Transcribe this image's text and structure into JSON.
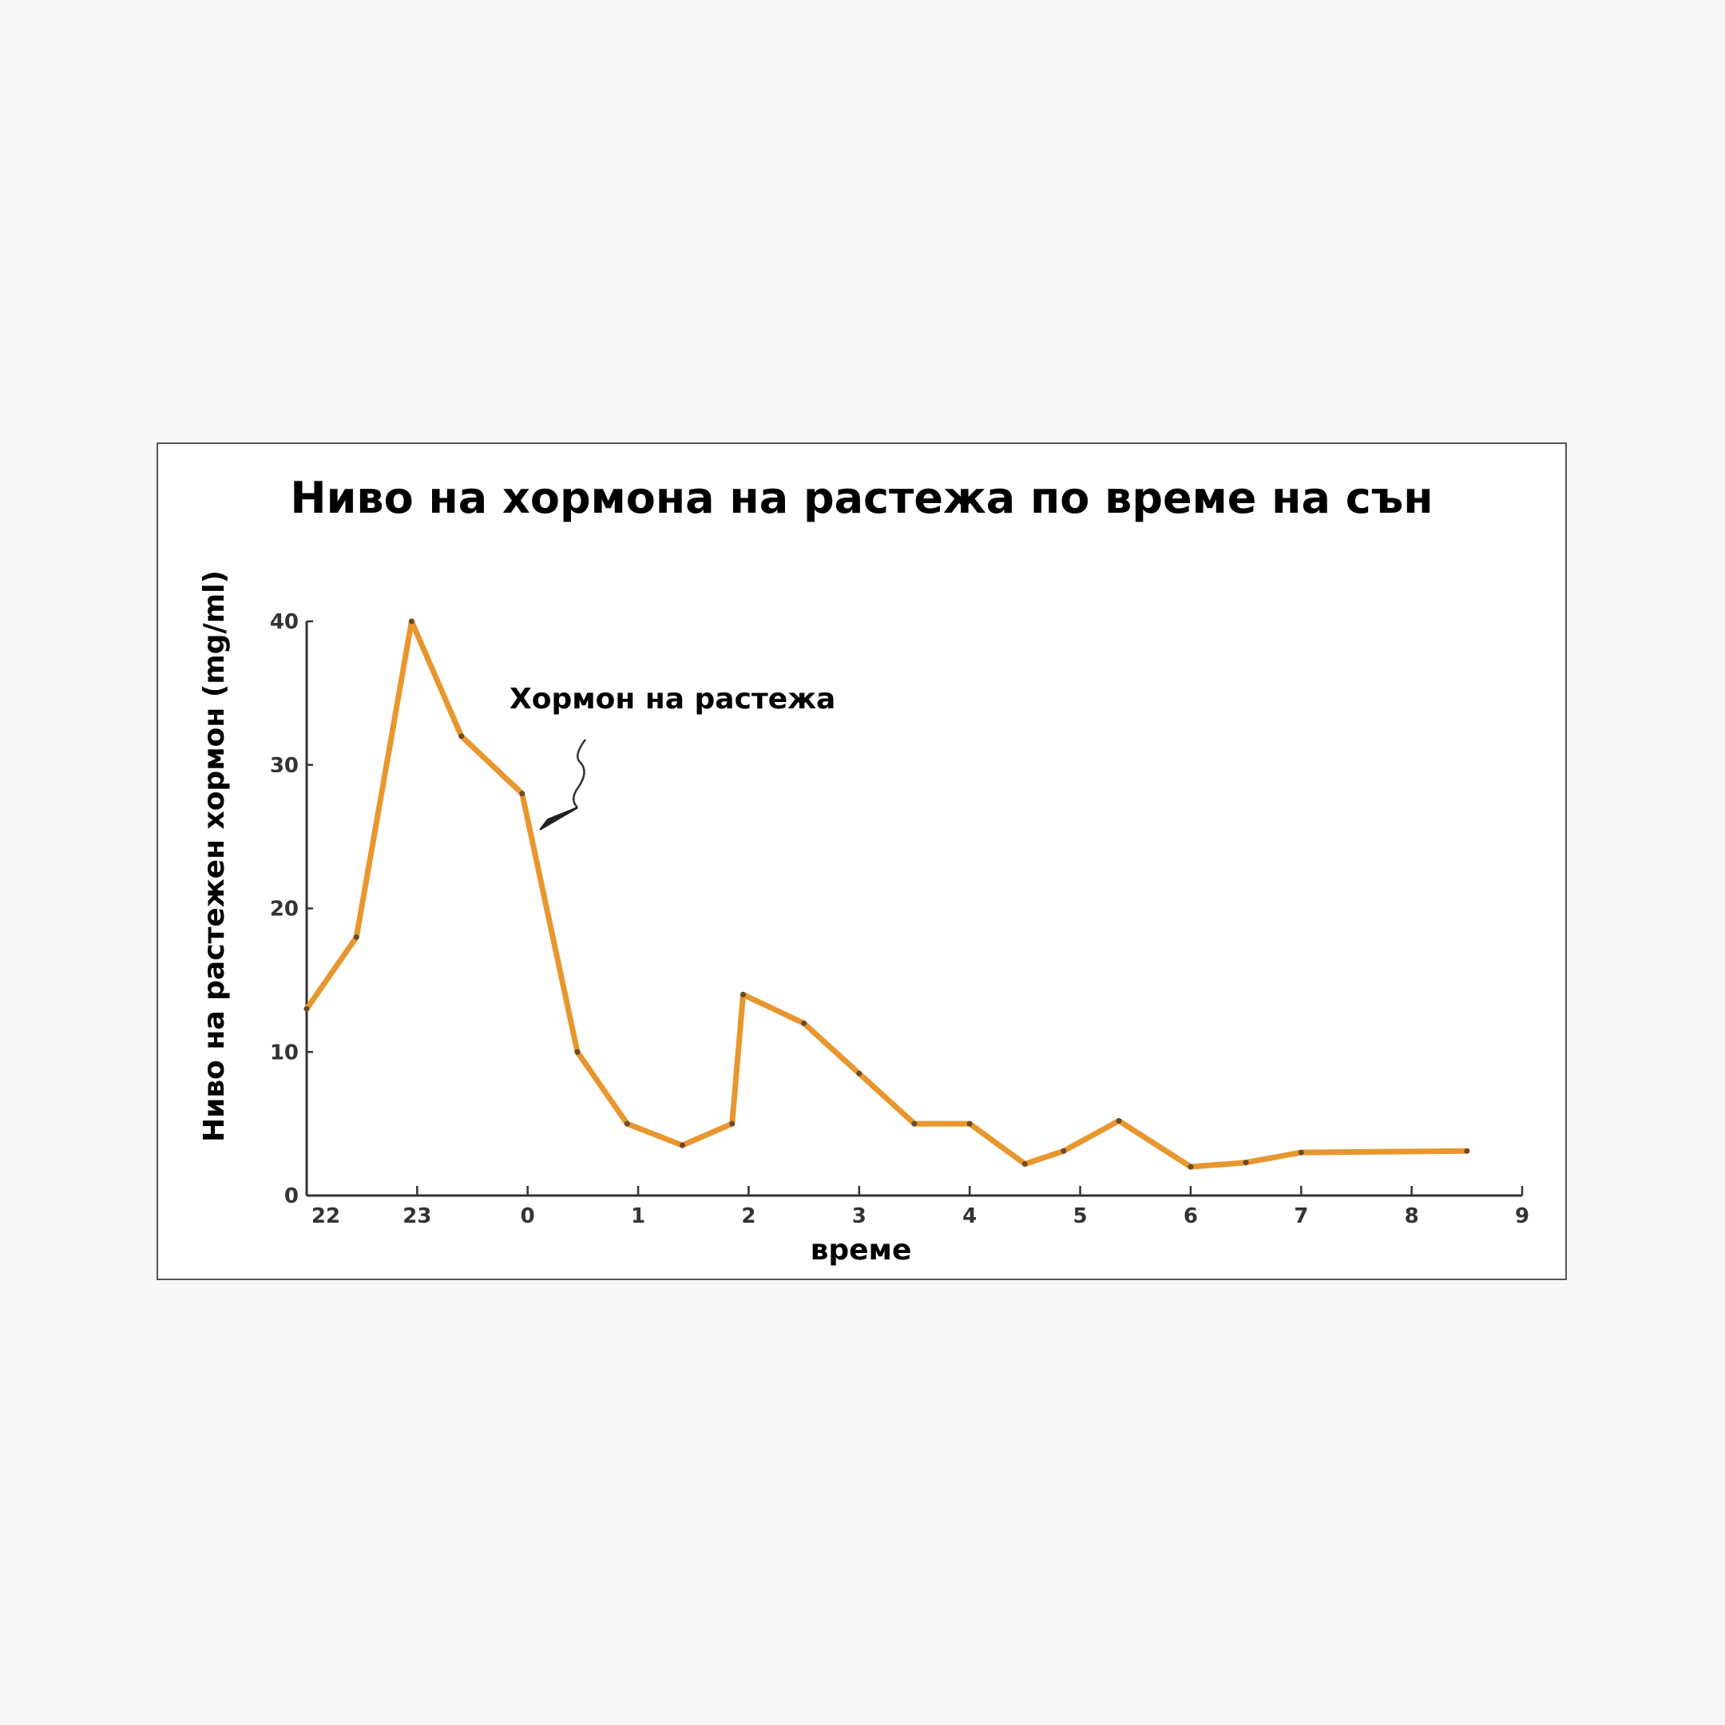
{
  "chart_data": {
    "type": "line",
    "title": "Ниво на хормона на растежа по време на сън",
    "xlabel": "време",
    "ylabel": "Ниво на растежен хормон (mg/ml)",
    "annotation": "Хормон на растежа",
    "x_tick_labels": [
      "22",
      "23",
      "0",
      "1",
      "2",
      "3",
      "4",
      "5",
      "6",
      "7",
      "8",
      "9"
    ],
    "y_ticks": [
      0,
      10,
      20,
      30,
      40
    ],
    "ylim": [
      0,
      40
    ],
    "xlim": [
      22,
      33
    ],
    "grid": false,
    "legend": "none",
    "series": [
      {
        "color": "#e8962e",
        "x": [
          22.0,
          22.45,
          22.95,
          23.4,
          23.95,
          24.45,
          24.9,
          25.4,
          25.85,
          25.95,
          26.5,
          27.0,
          27.5,
          28.0,
          28.5,
          28.85,
          29.35,
          30.0,
          30.5,
          31.0,
          32.5
        ],
        "y": [
          13,
          18,
          40,
          32,
          28,
          10,
          5,
          3.5,
          5,
          14,
          12,
          8.5,
          5,
          5,
          2.2,
          3.1,
          5.2,
          2.0,
          2.3,
          3.0,
          3.1
        ]
      }
    ]
  }
}
